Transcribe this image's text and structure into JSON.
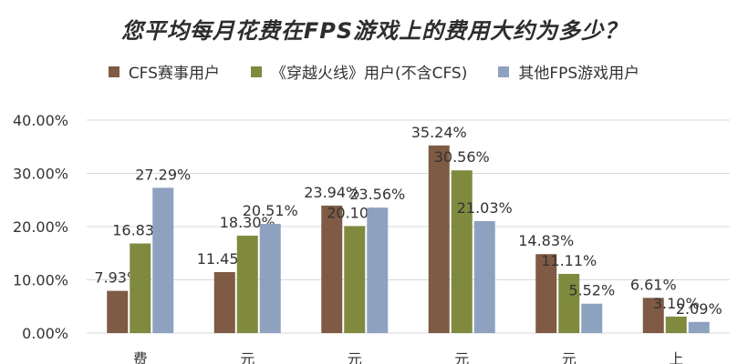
{
  "chart_data": {
    "type": "bar",
    "title": "您平均每月花费在FPS游戏上的费用大约为多少？",
    "categories": [
      "费",
      "元",
      "元",
      "元",
      "元",
      "上"
    ],
    "series": [
      {
        "name": "CFS赛事用户",
        "color": "#7f5a44",
        "values": [
          7.93,
          11.45,
          23.94,
          35.24,
          14.83,
          6.61
        ]
      },
      {
        "name": "《穿越火线》用户(不含CFS)",
        "color": "#7f8a3f",
        "values": [
          16.83,
          18.3,
          20.1,
          30.56,
          11.11,
          3.1
        ]
      },
      {
        "name": "其他FPS游戏用户",
        "color": "#8ea2c0",
        "values": [
          27.29,
          20.51,
          23.56,
          21.03,
          5.52,
          2.09
        ]
      }
    ],
    "yticks": [
      "0.00%",
      "10.00%",
      "20.00%",
      "30.00%",
      "40.00%"
    ],
    "ylim": [
      0,
      40
    ],
    "grid": true,
    "legend_position": "top"
  }
}
